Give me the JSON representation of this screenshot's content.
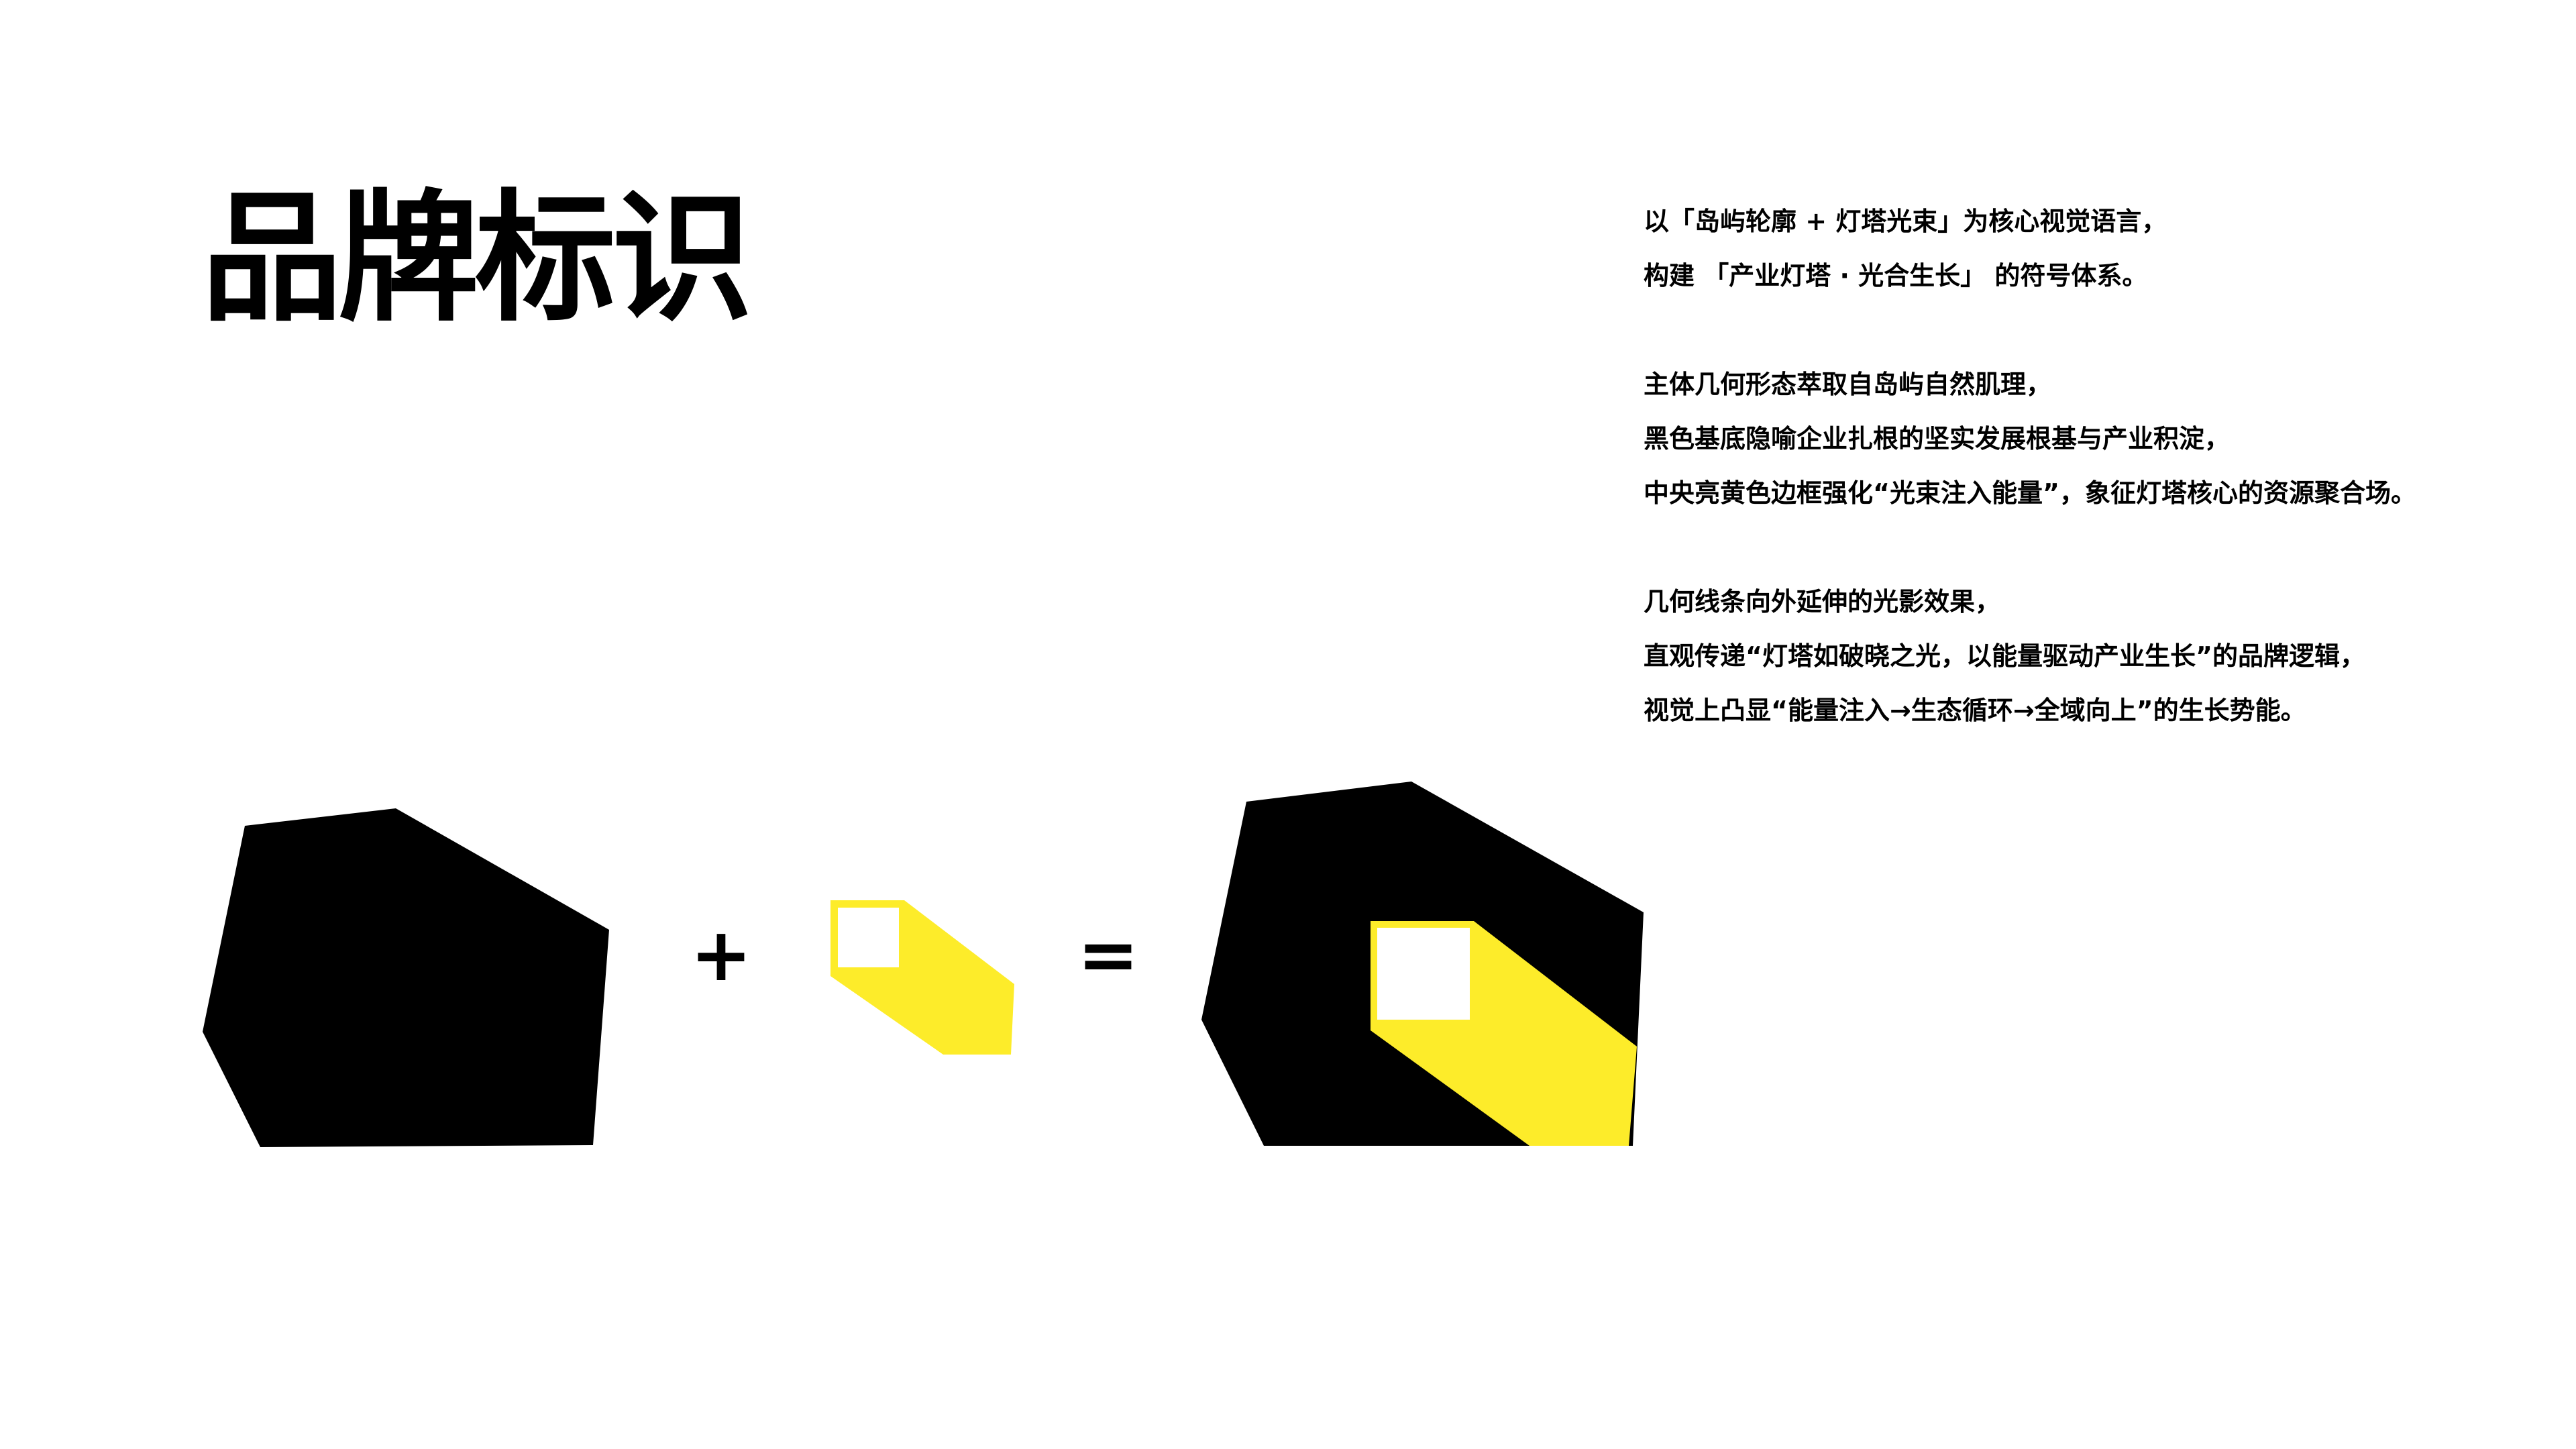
{
  "title": "品牌标识",
  "description": {
    "paragraphs": [
      {
        "lines": [
          "以「岛屿轮廓 + 灯塔光束」为核心视觉语言，",
          "构建 「产业灯塔 · 光合生长」 的符号体系。"
        ]
      },
      {
        "lines": [
          "主体几何形态萃取自岛屿自然肌理，",
          "黑色基底隐喻企业扎根的坚实发展根基与产业积淀，",
          "中央亮黄色边框强化“光束注入能量”，象征灯塔核心的资源聚合场。"
        ]
      },
      {
        "lines": [
          "几何线条向外延伸的光影效果，",
          "直观传递“灯塔如破晓之光，以能量驱动产业生长”的品牌逻辑，",
          "视觉上凸显“能量注入→生态循环→全域向上”的生长势能。"
        ]
      }
    ]
  },
  "equation": {
    "plus": "+",
    "equals": "="
  },
  "colors": {
    "background": "#ffffff",
    "island": "#000000",
    "beam": "#fdec2a",
    "window": "#ffffff"
  }
}
